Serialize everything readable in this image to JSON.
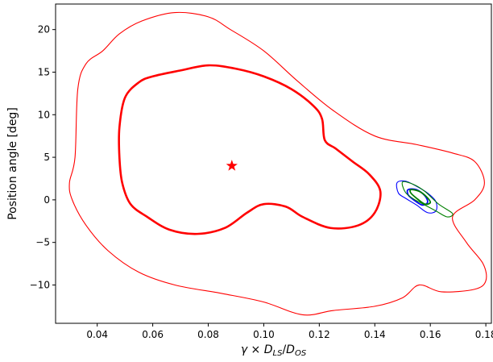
{
  "chart_data": {
    "type": "contour",
    "xlabel_parts": {
      "gamma": "γ",
      "times": " × ",
      "D": "D",
      "ls": "LS",
      "slash": "/",
      "os": "OS"
    },
    "ylabel": "Position angle [deg]",
    "xlim": [
      0.025,
      0.182
    ],
    "ylim": [
      -14.5,
      23
    ],
    "xticks": [
      0.04,
      0.06,
      0.08,
      0.1,
      0.12,
      0.14,
      0.16,
      0.18
    ],
    "xtick_labels": [
      "0.04",
      "0.06",
      "0.08",
      "0.10",
      "0.12",
      "0.14",
      "0.16",
      "0.18"
    ],
    "yticks": [
      -10,
      -5,
      0,
      5,
      10,
      15,
      20
    ],
    "ytick_labels": [
      "−10",
      "−5",
      "0",
      "5",
      "10",
      "15",
      "20"
    ],
    "grid": false,
    "star": {
      "x": 0.0885,
      "y": 4.0,
      "color": "#ff0000"
    },
    "contours": [
      {
        "color": "#ff0000",
        "weight": "thin",
        "points": [
          [
            0.03,
            2.0
          ],
          [
            0.032,
            5.0
          ],
          [
            0.033,
            13.0
          ],
          [
            0.036,
            16.0
          ],
          [
            0.042,
            17.5
          ],
          [
            0.048,
            19.5
          ],
          [
            0.056,
            21.0
          ],
          [
            0.068,
            22.0
          ],
          [
            0.08,
            21.5
          ],
          [
            0.088,
            20.0
          ],
          [
            0.1,
            17.5
          ],
          [
            0.112,
            14.0
          ],
          [
            0.125,
            10.5
          ],
          [
            0.14,
            7.5
          ],
          [
            0.155,
            6.5
          ],
          [
            0.168,
            5.5
          ],
          [
            0.176,
            4.5
          ],
          [
            0.1795,
            2.0
          ],
          [
            0.176,
            0.0
          ],
          [
            0.168,
            -2.0
          ],
          [
            0.173,
            -5.0
          ],
          [
            0.179,
            -7.5
          ],
          [
            0.18,
            -9.5
          ],
          [
            0.176,
            -10.5
          ],
          [
            0.164,
            -10.8
          ],
          [
            0.156,
            -10.0
          ],
          [
            0.15,
            -11.5
          ],
          [
            0.14,
            -12.5
          ],
          [
            0.125,
            -13.0
          ],
          [
            0.114,
            -13.5
          ],
          [
            0.1,
            -12.0
          ],
          [
            0.085,
            -11.0
          ],
          [
            0.068,
            -10.0
          ],
          [
            0.055,
            -8.5
          ],
          [
            0.044,
            -6.0
          ],
          [
            0.036,
            -3.0
          ],
          [
            0.031,
            0.0
          ],
          [
            0.03,
            2.0
          ]
        ]
      },
      {
        "color": "#ff0000",
        "weight": "thick",
        "points": [
          [
            0.048,
            8.5
          ],
          [
            0.05,
            12.0
          ],
          [
            0.055,
            13.8
          ],
          [
            0.06,
            14.5
          ],
          [
            0.07,
            15.2
          ],
          [
            0.08,
            15.8
          ],
          [
            0.09,
            15.4
          ],
          [
            0.1,
            14.5
          ],
          [
            0.11,
            13.0
          ],
          [
            0.118,
            11.0
          ],
          [
            0.121,
            9.5
          ],
          [
            0.122,
            7.0
          ],
          [
            0.126,
            6.0
          ],
          [
            0.132,
            4.5
          ],
          [
            0.138,
            3.0
          ],
          [
            0.142,
            1.0
          ],
          [
            0.14,
            -1.5
          ],
          [
            0.134,
            -3.0
          ],
          [
            0.124,
            -3.3
          ],
          [
            0.114,
            -2.0
          ],
          [
            0.108,
            -0.8
          ],
          [
            0.1,
            -0.5
          ],
          [
            0.094,
            -1.5
          ],
          [
            0.086,
            -3.3
          ],
          [
            0.076,
            -4.0
          ],
          [
            0.066,
            -3.5
          ],
          [
            0.058,
            -2.0
          ],
          [
            0.052,
            -0.5
          ],
          [
            0.049,
            2.0
          ],
          [
            0.048,
            5.0
          ],
          [
            0.048,
            8.5
          ]
        ]
      },
      {
        "color": "#0000ff",
        "weight": "thin",
        "points": [
          [
            0.148,
            2.0
          ],
          [
            0.151,
            2.2
          ],
          [
            0.155,
            1.6
          ],
          [
            0.159,
            0.8
          ],
          [
            0.162,
            -0.2
          ],
          [
            0.162,
            -1.3
          ],
          [
            0.159,
            -1.5
          ],
          [
            0.155,
            -0.6
          ],
          [
            0.151,
            0.2
          ],
          [
            0.1485,
            0.8
          ],
          [
            0.148,
            2.0
          ]
        ]
      },
      {
        "color": "#0000ff",
        "weight": "medium",
        "points": [
          [
            0.152,
            1.2
          ],
          [
            0.155,
            1.2
          ],
          [
            0.158,
            0.5
          ],
          [
            0.159,
            -0.3
          ],
          [
            0.157,
            -0.6
          ],
          [
            0.154,
            0.0
          ],
          [
            0.152,
            0.6
          ],
          [
            0.152,
            1.2
          ]
        ]
      },
      {
        "color": "#008000",
        "weight": "thin",
        "points": [
          [
            0.15,
            2.1
          ],
          [
            0.154,
            1.8
          ],
          [
            0.158,
            1.0
          ],
          [
            0.163,
            -0.5
          ],
          [
            0.168,
            -1.6
          ],
          [
            0.166,
            -2.0
          ],
          [
            0.162,
            -1.3
          ],
          [
            0.158,
            -0.6
          ],
          [
            0.154,
            0.1
          ],
          [
            0.151,
            0.9
          ],
          [
            0.15,
            2.1
          ]
        ]
      },
      {
        "color": "#008000",
        "weight": "medium",
        "points": [
          [
            0.153,
            1.2
          ],
          [
            0.156,
            1.0
          ],
          [
            0.1585,
            0.4
          ],
          [
            0.16,
            -0.3
          ],
          [
            0.158,
            -0.5
          ],
          [
            0.155,
            0.2
          ],
          [
            0.153,
            0.8
          ],
          [
            0.153,
            1.2
          ]
        ]
      }
    ]
  }
}
